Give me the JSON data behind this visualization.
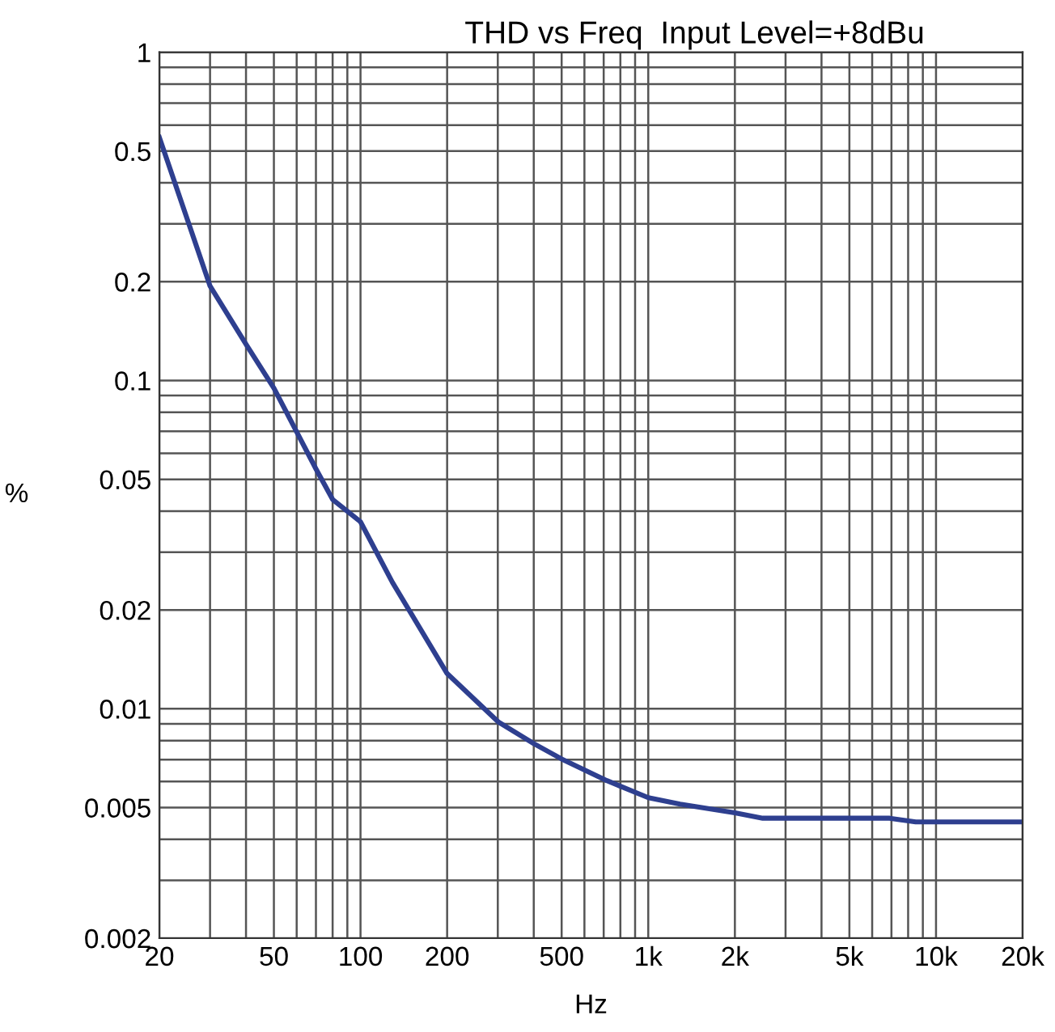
{
  "chart_data": {
    "type": "line",
    "title": "THD vs Freq  Input Level=+8dBu",
    "xlabel": "Hz",
    "ylabel": "%",
    "log": "xy",
    "grid": true,
    "marker": "none",
    "line_style": "solid",
    "xlim": [
      20,
      20000
    ],
    "ylim": [
      0.002,
      1
    ],
    "xticks": [
      20,
      50,
      100,
      200,
      500,
      {
        "value": 1000,
        "label": "1k"
      },
      {
        "value": 2000,
        "label": "2k"
      },
      {
        "value": 5000,
        "label": "5k"
      },
      {
        "value": 10000,
        "label": "10k"
      },
      {
        "value": 20000,
        "label": "20k"
      }
    ],
    "yticks": [
      0.002,
      0.005,
      0.01,
      0.02,
      0.05,
      0.1,
      0.2,
      0.5,
      1
    ],
    "x": [
      20,
      30,
      40,
      50,
      70,
      80,
      100,
      129,
      200,
      302,
      401,
      500,
      718,
      1000,
      1290,
      2000,
      2500,
      5000,
      6900,
      8500,
      20000
    ],
    "series": [
      {
        "color": "#2e3f8f",
        "values": [
          0.55,
          0.194,
          0.129,
          0.0948,
          0.0538,
          0.0434,
          0.0371,
          0.0243,
          0.0128,
          0.0091,
          0.00782,
          0.00703,
          0.00604,
          0.00536,
          0.00512,
          0.00482,
          0.00464,
          0.00464,
          0.00464,
          0.00452,
          0.00452
        ]
      }
    ]
  }
}
